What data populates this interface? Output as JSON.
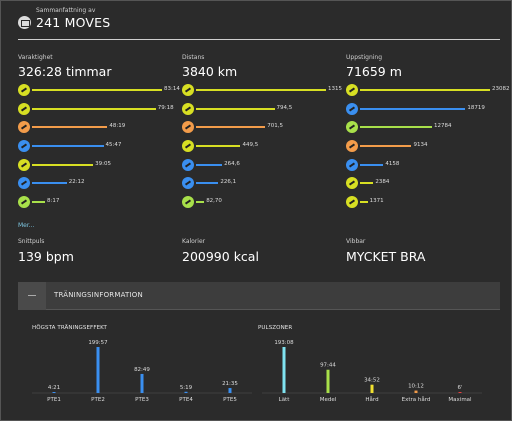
{
  "header": {
    "subtitle": "Sammanfattning av",
    "title": "241 MOVES"
  },
  "columns": [
    {
      "label": "Varaktighet",
      "value": "326:28 timmar",
      "rows": [
        {
          "icon": "hiking-icon",
          "color": "#d7df23",
          "value": "83:14",
          "fraction": 1.0
        },
        {
          "icon": "walking-icon",
          "color": "#d7df23",
          "value": "79:18",
          "fraction": 0.952
        },
        {
          "icon": "cycling-icon",
          "color": "#f39c4a",
          "value": "48:19",
          "fraction": 0.58
        },
        {
          "icon": "running-icon",
          "color": "#3a8ff0",
          "value": "45:47",
          "fraction": 0.55
        },
        {
          "icon": "skiing-icon",
          "color": "#d7df23",
          "value": "39:05",
          "fraction": 0.47
        },
        {
          "icon": "multisport-icon",
          "color": "#3a8ff0",
          "value": "22:12",
          "fraction": 0.267
        },
        {
          "icon": "mountaineering-icon",
          "color": "#a8e04a",
          "value": "8:17",
          "fraction": 0.1
        }
      ]
    },
    {
      "label": "Distans",
      "value": "3840 km",
      "rows": [
        {
          "icon": "skating-icon",
          "color": "#d7df23",
          "value": "1315",
          "fraction": 1.0
        },
        {
          "icon": "hiking-icon",
          "color": "#d7df23",
          "value": "794,5",
          "fraction": 0.604
        },
        {
          "icon": "cycling-icon",
          "color": "#f39c4a",
          "value": "701,5",
          "fraction": 0.533
        },
        {
          "icon": "walking-icon",
          "color": "#d7df23",
          "value": "449,5",
          "fraction": 0.342
        },
        {
          "icon": "running-icon",
          "color": "#3a8ff0",
          "value": "264,6",
          "fraction": 0.201
        },
        {
          "icon": "multisport-icon",
          "color": "#3a8ff0",
          "value": "226,1",
          "fraction": 0.172
        },
        {
          "icon": "mountaineering-icon",
          "color": "#a8e04a",
          "value": "82,70",
          "fraction": 0.063
        }
      ]
    },
    {
      "label": "Uppstigning",
      "value": "71659 m",
      "rows": [
        {
          "icon": "hiking-icon",
          "color": "#d7df23",
          "value": "23082",
          "fraction": 1.0
        },
        {
          "icon": "skating-icon",
          "color": "#3a8ff0",
          "value": "18719",
          "fraction": 0.811
        },
        {
          "icon": "mountaineering-icon",
          "color": "#a8e04a",
          "value": "12784",
          "fraction": 0.554
        },
        {
          "icon": "cycling-icon",
          "color": "#f39c4a",
          "value": "9134",
          "fraction": 0.396
        },
        {
          "icon": "running-icon",
          "color": "#3a8ff0",
          "value": "4158",
          "fraction": 0.18
        },
        {
          "icon": "skiing-icon",
          "color": "#d7df23",
          "value": "2384",
          "fraction": 0.103
        },
        {
          "icon": "walking-icon",
          "color": "#d7df23",
          "value": "1371",
          "fraction": 0.059
        }
      ]
    }
  ],
  "more_link": "Mer...",
  "stats": [
    {
      "label": "Snittpuls",
      "value": "139 bpm"
    },
    {
      "label": "Kalorier",
      "value": "200990 kcal"
    },
    {
      "label": "Vibbar",
      "value": "MYCKET BRA"
    }
  ],
  "panel": {
    "title": "TRÄNINGSINFORMATION"
  },
  "chart_data": [
    {
      "type": "bar",
      "title": "HÖGSTA TRÄNINGSEFFEKT",
      "categories": [
        "PTE1",
        "PTE2",
        "PTE3",
        "PTE4",
        "PTE5"
      ],
      "value_labels": [
        "4:21",
        "199:57",
        "82:49",
        "5:19",
        "21:35"
      ],
      "values": [
        4.35,
        199.95,
        82.82,
        5.32,
        21.58
      ],
      "colors": [
        "#3a8ff0",
        "#3a8ff0",
        "#3a8ff0",
        "#3a8ff0",
        "#3a8ff0"
      ]
    },
    {
      "type": "bar",
      "title": "PULSZONER",
      "categories": [
        "Lätt",
        "Medel",
        "Hård",
        "Extra hård",
        "Maximal"
      ],
      "value_labels": [
        "193:08",
        "97:44",
        "34:52",
        "10:12",
        "6'"
      ],
      "values": [
        193.13,
        97.73,
        34.87,
        10.2,
        0.1
      ],
      "colors": [
        "#7fe3f0",
        "#a8e04a",
        "#f0e030",
        "#f39c4a",
        "#e84040"
      ]
    }
  ]
}
